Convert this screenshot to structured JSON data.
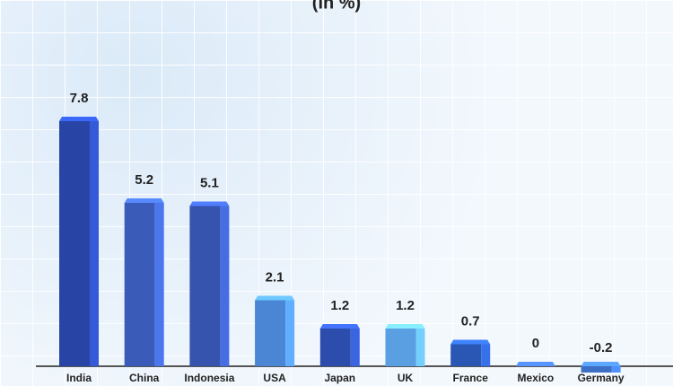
{
  "chart_data": {
    "type": "bar3d",
    "title": "(in %)",
    "categories": [
      "India",
      "China",
      "Indonesia",
      "USA",
      "Japan",
      "UK",
      "France",
      "Mexico",
      "Germany"
    ],
    "values": [
      7.8,
      5.2,
      5.1,
      2.1,
      1.2,
      1.2,
      0.7,
      0,
      -0.2
    ],
    "colors": [
      "#2845a6",
      "#3a5bb7",
      "#3654ae",
      "#4a86d3",
      "#2d4dac",
      "#5a9fe2",
      "#2a57b4",
      "#3a63bd",
      "#3d6fc5"
    ]
  }
}
